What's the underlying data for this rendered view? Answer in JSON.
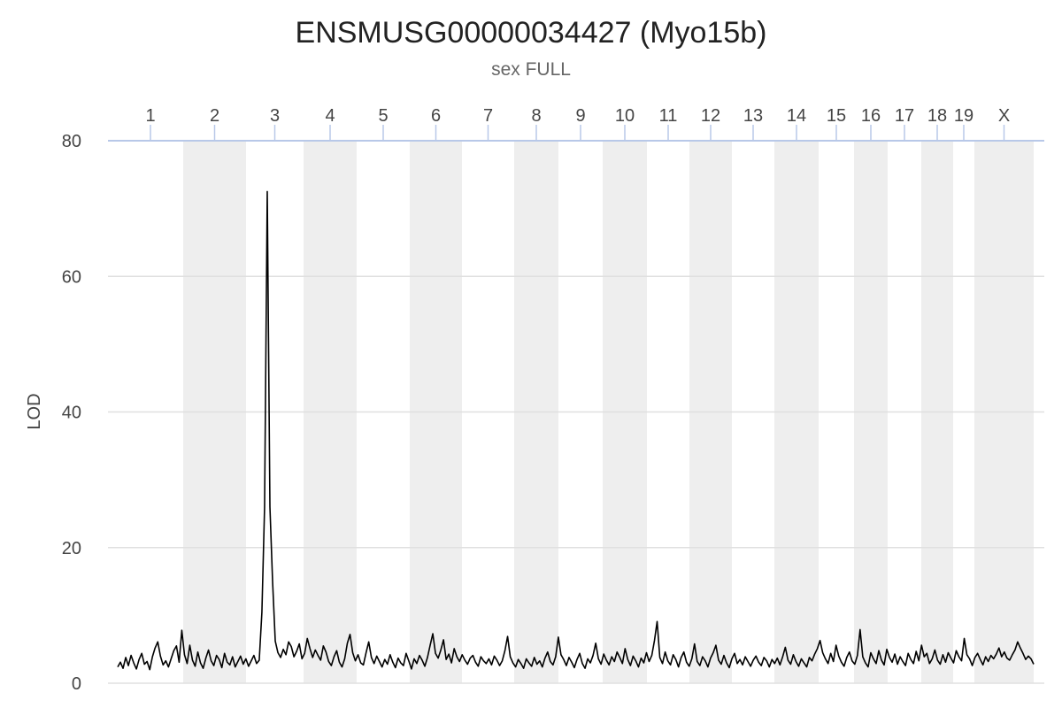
{
  "chart_data": {
    "type": "line",
    "title": "ENSMUSG00000034427 (Myo15b)",
    "subtitle": "sex FULL",
    "xlabel": "",
    "ylabel": "LOD",
    "ylim": [
      0,
      80
    ],
    "yticks": [
      0,
      20,
      40,
      60,
      80
    ],
    "grid": true,
    "legend": "none",
    "colors": {
      "line": "#000000",
      "band": "#eeeeee",
      "grid": "#e0e0e0",
      "axis": "#b8c8e8"
    },
    "chromosomes": [
      {
        "name": "1",
        "shaded": false
      },
      {
        "name": "2",
        "shaded": true
      },
      {
        "name": "3",
        "shaded": false
      },
      {
        "name": "4",
        "shaded": true
      },
      {
        "name": "5",
        "shaded": false
      },
      {
        "name": "6",
        "shaded": true
      },
      {
        "name": "7",
        "shaded": false
      },
      {
        "name": "8",
        "shaded": true
      },
      {
        "name": "9",
        "shaded": false
      },
      {
        "name": "10",
        "shaded": true
      },
      {
        "name": "11",
        "shaded": false
      },
      {
        "name": "12",
        "shaded": true
      },
      {
        "name": "13",
        "shaded": false
      },
      {
        "name": "14",
        "shaded": true
      },
      {
        "name": "15",
        "shaded": false
      },
      {
        "name": "16",
        "shaded": true
      },
      {
        "name": "17",
        "shaded": false
      },
      {
        "name": "18",
        "shaded": true
      },
      {
        "name": "19",
        "shaded": false
      },
      {
        "name": "X",
        "shaded": true
      }
    ],
    "series": [
      {
        "values": [
          2.4,
          3.1,
          2.2,
          3.8,
          2.6,
          4.1,
          3.0,
          2.1,
          3.5,
          4.4,
          2.8,
          3.2,
          2.0,
          3.9,
          5.2,
          6.1,
          4.0,
          2.7,
          3.3,
          2.4,
          3.6,
          4.8,
          5.5,
          3.1,
          7.8,
          4.2,
          2.9,
          5.6,
          3.4,
          2.5,
          4.6,
          3.0,
          2.2,
          3.7,
          4.9,
          3.3,
          2.6,
          4.1,
          3.5,
          2.3,
          4.4,
          3.1,
          2.7,
          3.9,
          2.4,
          3.2,
          4.0,
          2.8,
          3.6,
          2.5,
          3.3,
          4.1,
          2.9,
          3.4,
          10.5,
          26.0,
          72.5,
          26.0,
          15.0,
          6.2,
          4.5,
          3.8,
          5.0,
          4.2,
          6.1,
          5.4,
          3.9,
          4.7,
          5.8,
          3.6,
          4.4,
          6.6,
          5.1,
          3.8,
          4.9,
          4.1,
          3.4,
          5.5,
          4.6,
          3.2,
          2.6,
          3.9,
          4.8,
          3.1,
          2.4,
          3.6,
          5.9,
          7.2,
          4.5,
          3.3,
          4.2,
          3.0,
          2.7,
          4.5,
          6.1,
          3.8,
          2.9,
          4.0,
          3.2,
          2.4,
          3.5,
          2.8,
          4.2,
          3.1,
          2.3,
          3.7,
          3.0,
          2.6,
          4.4,
          3.3,
          2.1,
          3.6,
          2.9,
          4.1,
          3.4,
          2.5,
          3.8,
          5.6,
          7.3,
          4.4,
          3.7,
          4.9,
          6.4,
          3.5,
          4.3,
          3.0,
          5.1,
          3.9,
          3.2,
          4.2,
          3.4,
          2.8,
          3.7,
          4.1,
          3.1,
          2.5,
          3.9,
          3.3,
          2.9,
          3.6,
          2.7,
          4.0,
          3.4,
          2.6,
          3.3,
          4.8,
          6.9,
          3.9,
          3.0,
          2.4,
          3.5,
          2.9,
          2.2,
          3.6,
          3.0,
          2.5,
          3.8,
          2.8,
          3.3,
          2.4,
          3.7,
          4.6,
          3.2,
          2.7,
          3.9,
          6.8,
          4.2,
          3.5,
          2.6,
          3.8,
          3.1,
          2.3,
          3.5,
          4.4,
          2.9,
          2.2,
          3.6,
          3.0,
          4.1,
          5.9,
          3.6,
          2.8,
          4.3,
          3.4,
          2.7,
          3.9,
          3.2,
          4.6,
          3.8,
          2.9,
          5.1,
          3.5,
          2.6,
          4.0,
          3.3,
          2.4,
          3.7,
          3.0,
          4.5,
          3.2,
          4.1,
          6.3,
          9.1,
          3.8,
          2.9,
          4.6,
          3.3,
          2.7,
          4.2,
          3.5,
          2.4,
          3.8,
          4.6,
          3.1,
          2.5,
          3.6,
          5.8,
          3.2,
          2.6,
          3.9,
          3.3,
          2.4,
          3.7,
          4.5,
          5.6,
          3.4,
          2.8,
          4.1,
          3.0,
          2.3,
          3.6,
          4.4,
          2.9,
          3.5,
          2.7,
          3.9,
          3.2,
          2.5,
          3.4,
          4.0,
          3.1,
          2.6,
          3.8,
          3.3,
          2.4,
          3.5,
          2.9,
          3.7,
          2.7,
          3.9,
          5.3,
          3.4,
          2.8,
          4.2,
          3.2,
          2.5,
          3.6,
          3.0,
          2.4,
          3.8,
          3.3,
          4.3,
          5.1,
          6.3,
          4.5,
          3.6,
          2.9,
          4.4,
          3.2,
          5.6,
          4.0,
          3.1,
          2.5,
          3.8,
          4.6,
          3.3,
          2.8,
          4.1,
          7.9,
          3.9,
          3.0,
          2.4,
          4.5,
          3.6,
          2.9,
          4.8,
          3.4,
          2.7,
          5.0,
          3.8,
          3.1,
          4.3,
          2.8,
          3.9,
          3.2,
          2.6,
          4.4,
          3.5,
          2.9,
          4.7,
          3.3,
          5.6,
          3.9,
          4.4,
          2.9,
          3.6,
          4.9,
          3.4,
          2.8,
          4.2,
          3.1,
          4.5,
          3.7,
          3.0,
          4.8,
          3.9,
          3.3,
          6.6,
          4.2,
          3.6,
          2.6,
          3.8,
          4.4,
          3.5,
          2.7,
          3.9,
          3.2,
          4.1,
          3.6,
          4.3,
          5.2,
          3.9,
          4.6,
          3.7,
          3.4,
          4.2,
          4.9,
          6.1,
          5.2,
          4.4,
          3.5,
          4.0,
          3.6,
          2.8
        ]
      }
    ]
  }
}
